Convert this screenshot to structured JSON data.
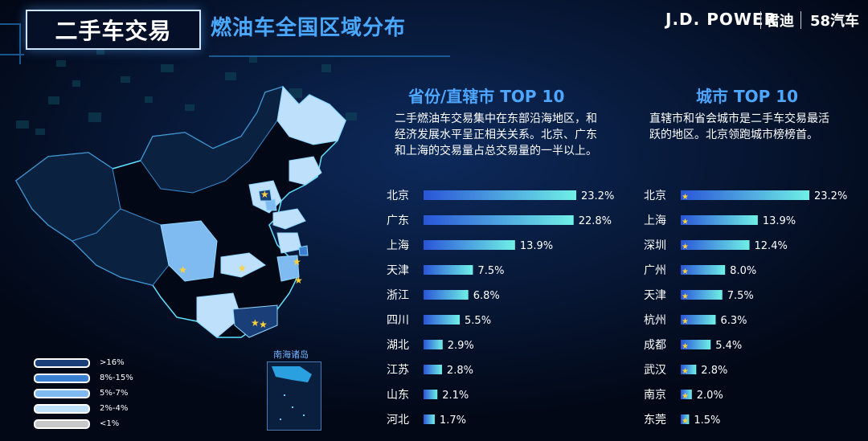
{
  "header": {
    "title": "二手车交易",
    "subtitle": "燃油车全国区域分布",
    "brand_jdpower": "J.D. POWER",
    "brand_jundi": "君迪",
    "brand_58": "58汽车"
  },
  "legend": {
    "items": [
      {
        "label": ">16%",
        "color": "#1a3f78"
      },
      {
        "label": "8%-15%",
        "color": "#3a7fd0"
      },
      {
        "label": "5%-7%",
        "color": "#7fbaf0"
      },
      {
        "label": "2%-4%",
        "color": "#bfe0fb"
      },
      {
        "label": "<1%",
        "color": "#c7c7c7"
      }
    ]
  },
  "map": {
    "inset_label": "南海诸岛"
  },
  "chart_data": [
    {
      "type": "bar",
      "title": "省份/直辖市 TOP 10",
      "description_lines": [
        "二手燃油车交易集中在东部沿海地区，和",
        "经济发展水平呈正相关关系。北京、广东",
        "和上海的交易量占总交易量的一半以上。"
      ],
      "categories": [
        "北京",
        "广东",
        "上海",
        "天津",
        "浙江",
        "四川",
        "湖北",
        "江苏",
        "山东",
        "河北"
      ],
      "values": [
        23.2,
        22.8,
        13.9,
        7.5,
        6.8,
        5.5,
        2.9,
        2.8,
        2.1,
        1.7
      ],
      "value_labels": [
        "23.2%",
        "22.8%",
        "13.9%",
        "7.5%",
        "6.8%",
        "5.5%",
        "2.9%",
        "2.8%",
        "2.1%",
        "1.7%"
      ],
      "unit": "%"
    },
    {
      "type": "bar",
      "title": "城市 TOP 10",
      "description_lines": [
        "直辖市和省会城市是二手车交易最活",
        "跃的地区。北京领跑城市榜榜首。"
      ],
      "categories": [
        "北京",
        "上海",
        "深圳",
        "广州",
        "天津",
        "杭州",
        "成都",
        "武汉",
        "南京",
        "东莞"
      ],
      "values": [
        23.2,
        13.9,
        12.4,
        8.0,
        7.5,
        6.3,
        5.4,
        2.8,
        2.0,
        1.5
      ],
      "value_labels": [
        "23.2%",
        "13.9%",
        "12.4%",
        "8.0%",
        "7.5%",
        "6.3%",
        "5.4%",
        "2.8%",
        "2.0%",
        "1.5%"
      ],
      "marker": "★",
      "unit": "%"
    }
  ]
}
